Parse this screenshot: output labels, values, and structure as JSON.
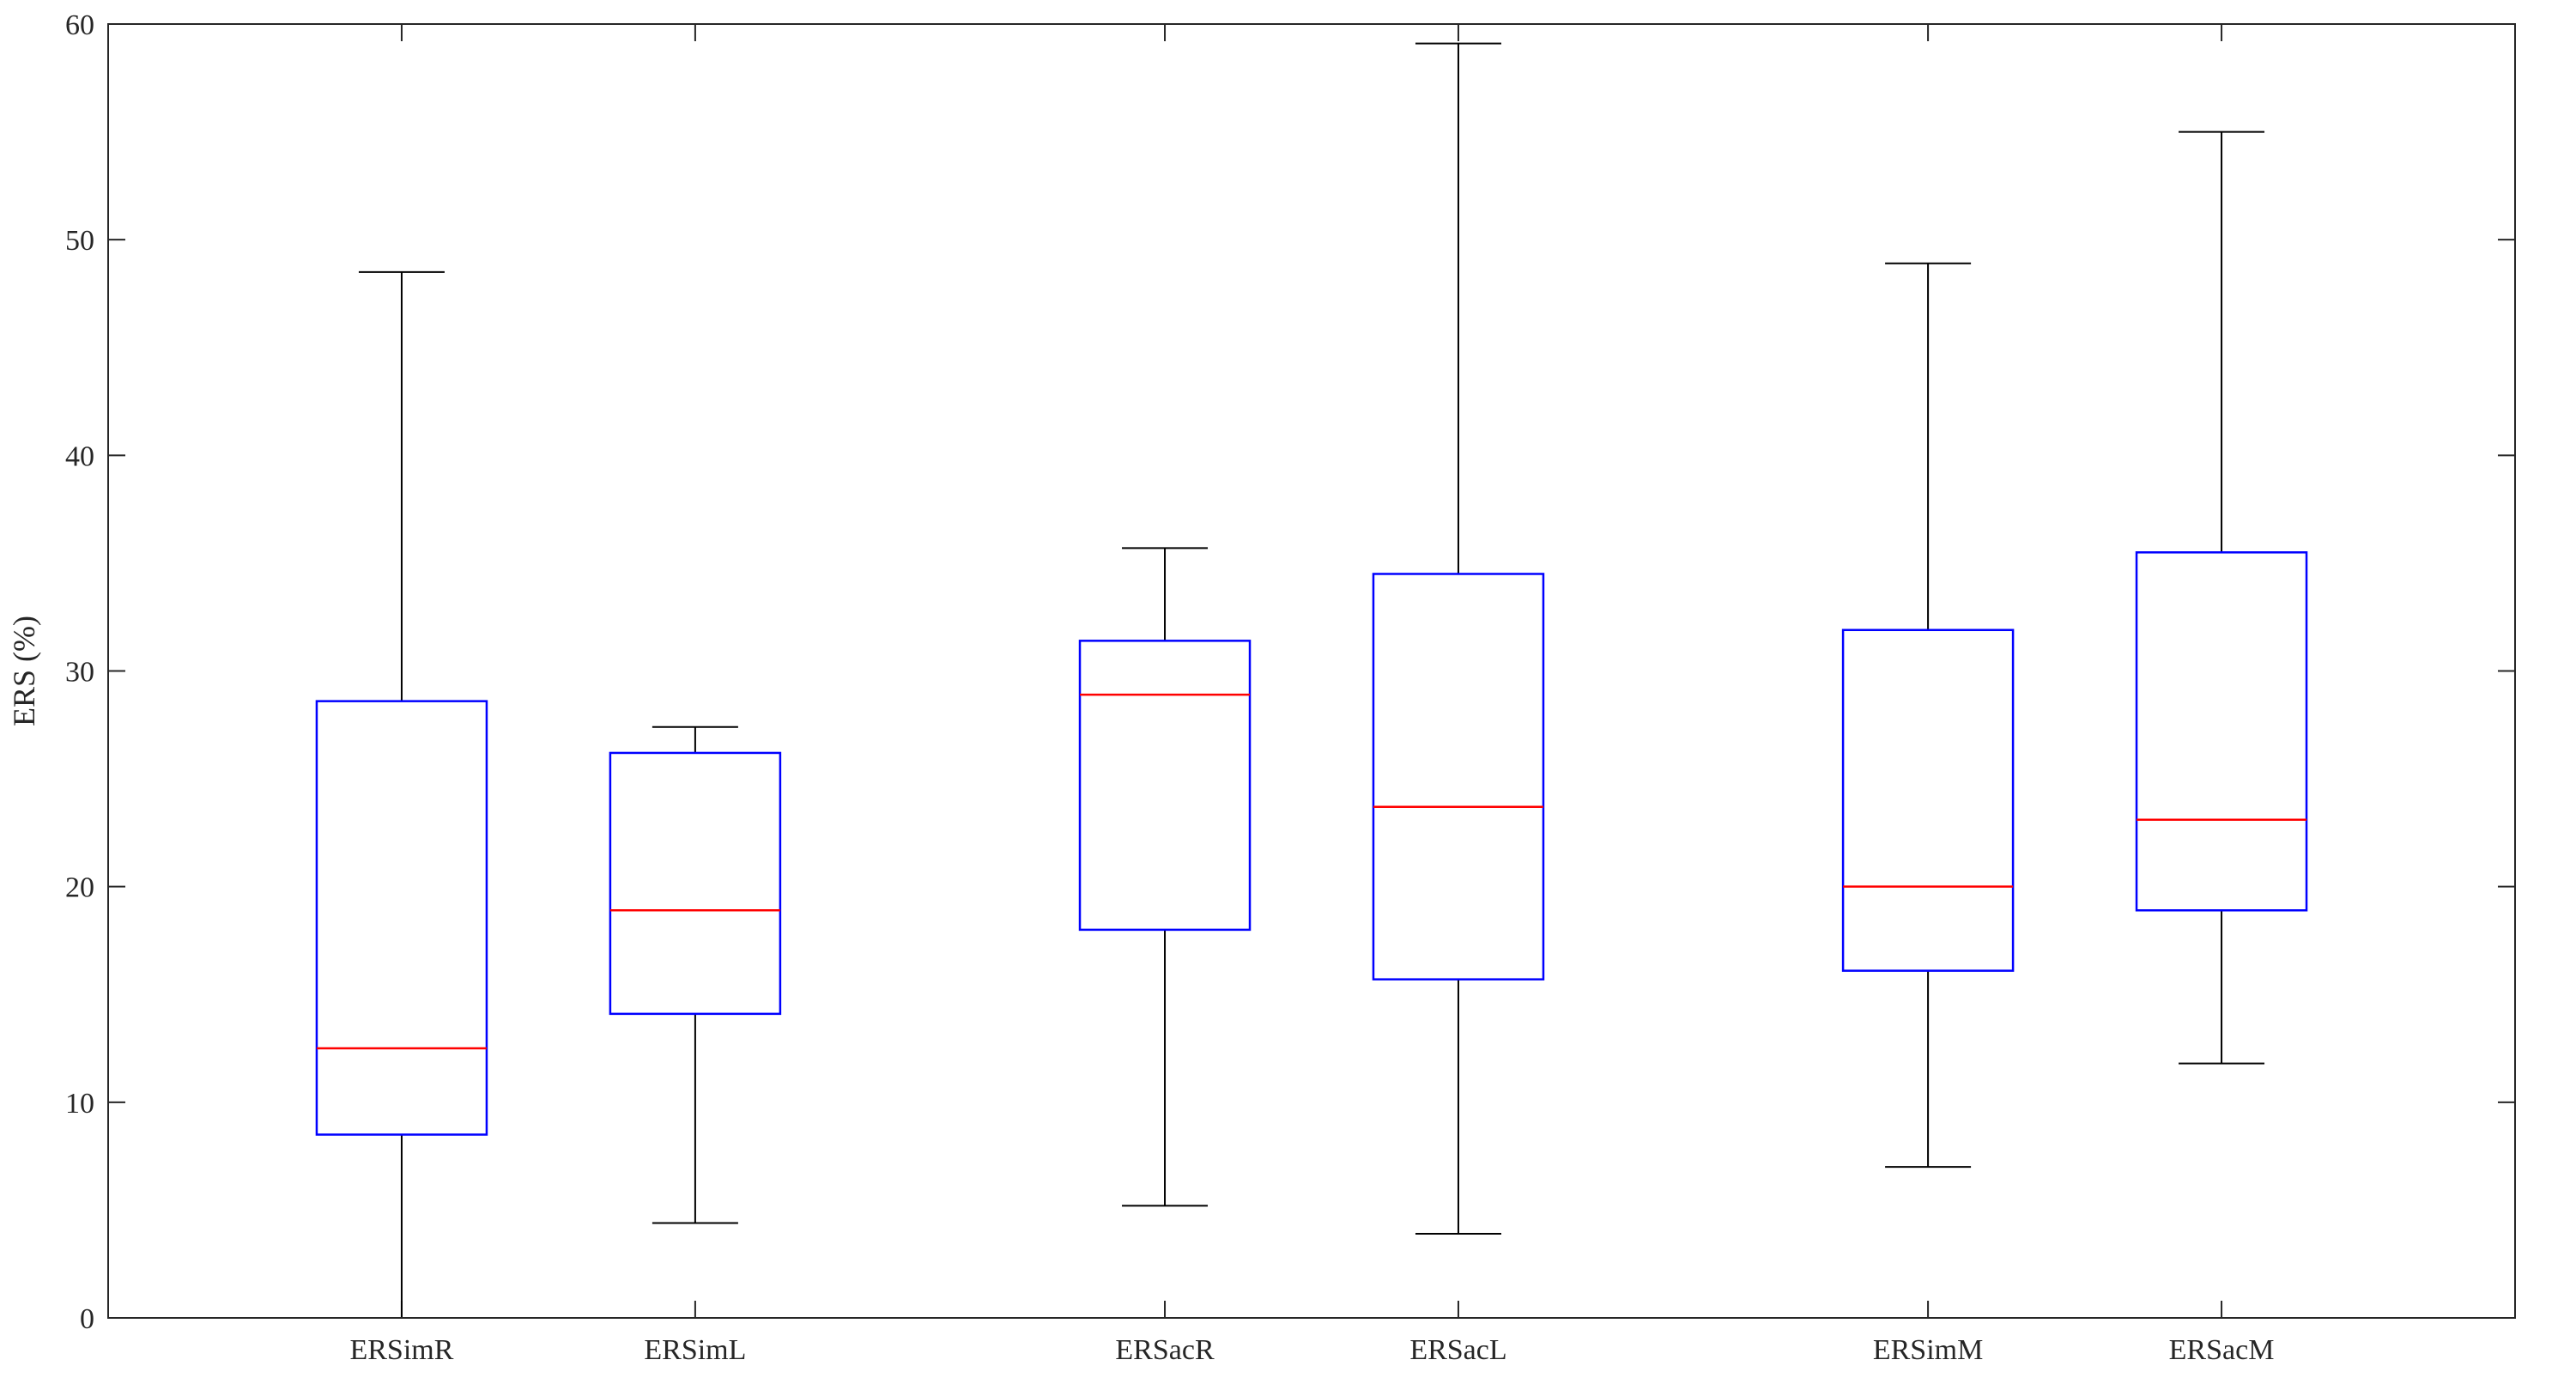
{
  "chart_data": {
    "type": "box",
    "categories": [
      "ERSimR",
      "ERSimL",
      "ERSacR",
      "ERSacL",
      "ERSimM",
      "ERSacM"
    ],
    "x_positions": [
      1,
      2,
      3.6,
      4.6,
      6.2,
      7.2
    ],
    "boxes": [
      {
        "category": "ERSimR",
        "min": 0,
        "q1": 8.5,
        "median": 12.5,
        "q3": 28.6,
        "max": 48.5
      },
      {
        "category": "ERSimL",
        "min": 4.4,
        "q1": 14.1,
        "median": 18.9,
        "q3": 26.2,
        "max": 27.4
      },
      {
        "category": "ERSacR",
        "min": 5.2,
        "q1": 18,
        "median": 28.9,
        "q3": 31.4,
        "max": 35.7
      },
      {
        "category": "ERSacL",
        "min": 3.9,
        "q1": 15.7,
        "median": 23.7,
        "q3": 34.5,
        "max": 59.1
      },
      {
        "category": "ERSimM",
        "min": 7.0,
        "q1": 16.1,
        "median": 20,
        "q3": 31.9,
        "max": 48.9
      },
      {
        "category": "ERSacM",
        "min": 11.8,
        "q1": 18.9,
        "median": 23.1,
        "q3": 35.5,
        "max": 55
      }
    ],
    "xlim": [
      0,
      8.2
    ],
    "ylim": [
      0,
      60
    ],
    "yticks": [
      0,
      10,
      20,
      30,
      40,
      50,
      60
    ],
    "ylabel": "ERS (%)",
    "xlabel": "",
    "title": "",
    "grid": false,
    "colors": {
      "box": "#0000ff",
      "median": "#ff0000",
      "whisker": "#000000",
      "axis": "#262626"
    }
  }
}
